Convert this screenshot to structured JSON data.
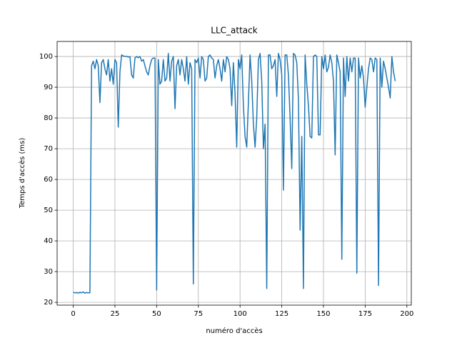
{
  "chart_data": {
    "type": "line",
    "title": "LLC_attack",
    "x_label": "numéro d'accès",
    "y_label": "Temps d'accès (ms)",
    "x": [
      0,
      1,
      2,
      3,
      4,
      5,
      6,
      7,
      8,
      9,
      10,
      11,
      12,
      13,
      14,
      15,
      16,
      17,
      18,
      19,
      20,
      21,
      22,
      23,
      24,
      25,
      26,
      27,
      28,
      29,
      30,
      31,
      32,
      33,
      34,
      35,
      36,
      37,
      38,
      39,
      40,
      41,
      42,
      43,
      44,
      45,
      46,
      47,
      48,
      49,
      50,
      51,
      52,
      53,
      54,
      55,
      56,
      57,
      58,
      59,
      60,
      61,
      62,
      63,
      64,
      65,
      66,
      67,
      68,
      69,
      70,
      71,
      72,
      73,
      74,
      75,
      76,
      77,
      78,
      79,
      80,
      81,
      82,
      83,
      84,
      85,
      86,
      87,
      88,
      89,
      90,
      91,
      92,
      93,
      94,
      95,
      96,
      97,
      98,
      99,
      100,
      101,
      102,
      103,
      104,
      105,
      106,
      107,
      108,
      109,
      110,
      111,
      112,
      113,
      114,
      115,
      116,
      117,
      118,
      119,
      120,
      121,
      122,
      123,
      124,
      125,
      126,
      127,
      128,
      129,
      130,
      131,
      132,
      133,
      134,
      135,
      136,
      137,
      138,
      139,
      140,
      141,
      142,
      143,
      144,
      145,
      146,
      147,
      148,
      149,
      150,
      151,
      152,
      153,
      154,
      155,
      156,
      157,
      158,
      159,
      160,
      161,
      162,
      163,
      164,
      165,
      166,
      167,
      168,
      169,
      170,
      171,
      172,
      173,
      174,
      175,
      176,
      177,
      178,
      179,
      180,
      181,
      182,
      183,
      184,
      185,
      186,
      187,
      188,
      189,
      190,
      191,
      192,
      193
    ],
    "series": [
      {
        "name": "LLC_attack",
        "color": "#1f77b4",
        "values": [
          23.3,
          23.1,
          23.2,
          23.0,
          23.3,
          23.1,
          23.4,
          23.0,
          23.2,
          23.1,
          23.1,
          97,
          98.5,
          96,
          99,
          97,
          85,
          98,
          99,
          96,
          94,
          99,
          92,
          96,
          91,
          99,
          98,
          77,
          95,
          100.5,
          100.2,
          100,
          100.1,
          99.8,
          100,
          94,
          93,
          99.5,
          100,
          99.6,
          100,
          98.5,
          99,
          97,
          95,
          94,
          97,
          99,
          99.5,
          99.5,
          24,
          99,
          91,
          92,
          99,
          92,
          93,
          101,
          92,
          98.5,
          100,
          83,
          97,
          99,
          94,
          99,
          96,
          92,
          100,
          91,
          98,
          96,
          26,
          99,
          98,
          99.5,
          93,
          100,
          99,
          92,
          93,
          100,
          100.5,
          99.5,
          99,
          93,
          97,
          99,
          96,
          92,
          99,
          95,
          100,
          99,
          96,
          84,
          98,
          88,
          70.5,
          99,
          96,
          100.5,
          84,
          74,
          70.5,
          85,
          100.5,
          92,
          78,
          70.5,
          80,
          99,
          101,
          92,
          70,
          78,
          24.5,
          100.5,
          100.5,
          96,
          97,
          99,
          87,
          101,
          99,
          94,
          56.5,
          100.5,
          100.5,
          94,
          80,
          63.5,
          101,
          100.5,
          98,
          86,
          43.5,
          74,
          24.5,
          100.5,
          91,
          84,
          74,
          73.5,
          100,
          100.5,
          100,
          74.5,
          74.5,
          100,
          96,
          100.5,
          95,
          96.5,
          100.5,
          98,
          92,
          68,
          100.5,
          98,
          95,
          34,
          99.5,
          87,
          100,
          92,
          99.5,
          95,
          99.5,
          99.5,
          29.5,
          99.5,
          93,
          97,
          93,
          83.5,
          90,
          96,
          99.5,
          99,
          95,
          99.5,
          99,
          25.5,
          99.5,
          90,
          98.5,
          96,
          93,
          90,
          86.5,
          100,
          95,
          92
        ]
      }
    ],
    "xlim": [
      -9.65,
      202.65
    ],
    "ylim": [
      19.1,
      104.9
    ],
    "xticks": [
      0,
      25,
      50,
      75,
      100,
      125,
      150,
      175,
      200
    ],
    "yticks": [
      20,
      30,
      40,
      50,
      60,
      70,
      80,
      90,
      100
    ],
    "grid": true
  }
}
